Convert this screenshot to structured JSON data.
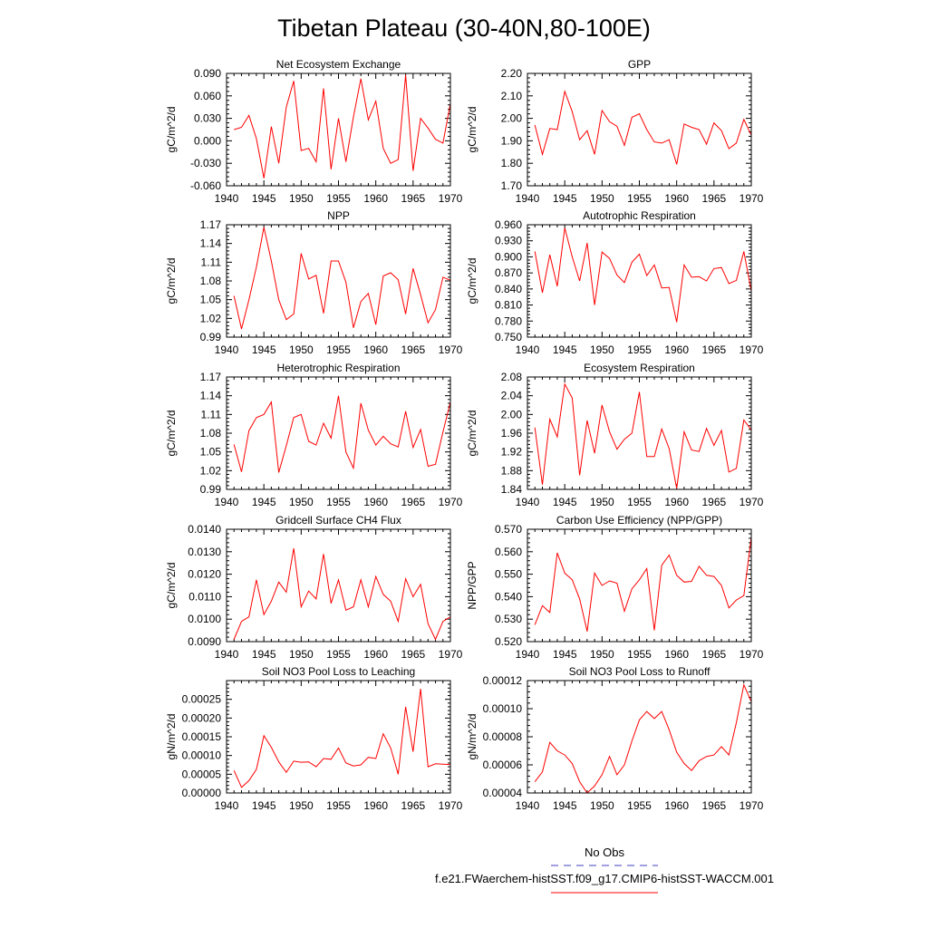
{
  "title": "Tibetan Plateau (30-40N,80-100E)",
  "legend": {
    "entries": [
      {
        "label": "No Obs",
        "color": "#4040c0",
        "dash": true
      },
      {
        "label": "f.e21.FWaerchem-histSST.f09_g17.CMIP6-histSST-WACCM.001",
        "color": "#ff0000",
        "dash": false
      }
    ]
  },
  "chart_data": [
    {
      "type": "line",
      "title": "Net Ecosystem Exchange",
      "ylabel": "gC/m^2/d",
      "xlim": [
        1940,
        1970
      ],
      "xticks": [
        "1940",
        "1945",
        "1950",
        "1955",
        "1960",
        "1965",
        "1970"
      ],
      "ylim": [
        -0.06,
        0.09
      ],
      "yticks": [
        "-0.060",
        "-0.030",
        "0.000",
        "0.030",
        "0.060",
        "0.090"
      ],
      "x": [
        1941,
        1942,
        1943,
        1944,
        1945,
        1946,
        1947,
        1948,
        1949,
        1950,
        1951,
        1952,
        1953,
        1954,
        1955,
        1956,
        1957,
        1958,
        1959,
        1960,
        1961,
        1962,
        1963,
        1964,
        1965,
        1966,
        1967,
        1968,
        1969,
        1970
      ],
      "series": [
        {
          "color": "#ff0000",
          "values": [
            0.015,
            0.018,
            0.034,
            0.003,
            -0.05,
            0.019,
            -0.03,
            0.045,
            0.08,
            -0.013,
            -0.01,
            -0.028,
            0.07,
            -0.038,
            0.03,
            -0.028,
            0.032,
            0.083,
            0.028,
            0.053,
            -0.01,
            -0.03,
            -0.025,
            0.088,
            -0.04,
            0.03,
            0.017,
            0.002,
            -0.003,
            0.05
          ]
        }
      ]
    },
    {
      "type": "line",
      "title": "GPP",
      "ylabel": "gC/m^2/d",
      "xlim": [
        1940,
        1970
      ],
      "xticks": [
        "1940",
        "1945",
        "1950",
        "1955",
        "1960",
        "1965",
        "1970"
      ],
      "ylim": [
        1.7,
        2.2
      ],
      "yticks": [
        "1.70",
        "1.80",
        "1.90",
        "2.00",
        "2.10",
        "2.20"
      ],
      "x": [
        1941,
        1942,
        1943,
        1944,
        1945,
        1946,
        1947,
        1948,
        1949,
        1950,
        1951,
        1952,
        1953,
        1954,
        1955,
        1956,
        1957,
        1958,
        1959,
        1960,
        1961,
        1962,
        1963,
        1964,
        1965,
        1966,
        1967,
        1968,
        1969,
        1970
      ],
      "series": [
        {
          "color": "#ff0000",
          "values": [
            1.97,
            1.84,
            1.955,
            1.95,
            2.12,
            2.03,
            1.905,
            1.945,
            1.84,
            2.035,
            1.985,
            1.965,
            1.88,
            2.005,
            2.02,
            1.95,
            1.895,
            1.89,
            1.905,
            1.795,
            1.975,
            1.96,
            1.95,
            1.885,
            1.98,
            1.945,
            1.865,
            1.89,
            1.995,
            1.925
          ]
        }
      ]
    },
    {
      "type": "line",
      "title": "NPP",
      "ylabel": "gC/m^2/d",
      "xlim": [
        1940,
        1970
      ],
      "xticks": [
        "1940",
        "1945",
        "1950",
        "1955",
        "1960",
        "1965",
        "1970"
      ],
      "ylim": [
        0.99,
        1.17
      ],
      "yticks": [
        "0.99",
        "1.02",
        "1.05",
        "1.08",
        "1.11",
        "1.14",
        "1.17"
      ],
      "x": [
        1941,
        1942,
        1943,
        1944,
        1945,
        1946,
        1947,
        1948,
        1949,
        1950,
        1951,
        1952,
        1953,
        1954,
        1955,
        1956,
        1957,
        1958,
        1959,
        1960,
        1961,
        1962,
        1963,
        1964,
        1965,
        1966,
        1967,
        1968,
        1969,
        1970
      ],
      "series": [
        {
          "color": "#ff0000",
          "values": [
            1.056,
            1.003,
            1.05,
            1.102,
            1.166,
            1.112,
            1.05,
            1.018,
            1.027,
            1.124,
            1.083,
            1.089,
            1.028,
            1.112,
            1.112,
            1.078,
            1.005,
            1.047,
            1.06,
            1.01,
            1.088,
            1.093,
            1.082,
            1.027,
            1.1,
            1.058,
            1.013,
            1.034,
            1.086,
            1.081
          ]
        }
      ]
    },
    {
      "type": "line",
      "title": "Autotrophic Respiration",
      "ylabel": "gC/m^2/d",
      "xlim": [
        1940,
        1970
      ],
      "xticks": [
        "1940",
        "1945",
        "1950",
        "1955",
        "1960",
        "1965",
        "1970"
      ],
      "ylim": [
        0.75,
        0.96
      ],
      "yticks": [
        "0.750",
        "0.780",
        "0.810",
        "0.840",
        "0.870",
        "0.900",
        "0.930",
        "0.960"
      ],
      "x": [
        1941,
        1942,
        1943,
        1944,
        1945,
        1946,
        1947,
        1948,
        1949,
        1950,
        1951,
        1952,
        1953,
        1954,
        1955,
        1956,
        1957,
        1958,
        1959,
        1960,
        1961,
        1962,
        1963,
        1964,
        1965,
        1966,
        1967,
        1968,
        1969,
        1970
      ],
      "series": [
        {
          "color": "#ff0000",
          "values": [
            0.91,
            0.833,
            0.904,
            0.845,
            0.954,
            0.9,
            0.855,
            0.926,
            0.81,
            0.909,
            0.897,
            0.866,
            0.852,
            0.89,
            0.905,
            0.865,
            0.885,
            0.842,
            0.843,
            0.778,
            0.885,
            0.862,
            0.863,
            0.855,
            0.878,
            0.88,
            0.85,
            0.856,
            0.91,
            0.836
          ]
        }
      ]
    },
    {
      "type": "line",
      "title": "Heterotrophic Respiration",
      "ylabel": "gC/m^2/d",
      "xlim": [
        1940,
        1970
      ],
      "xticks": [
        "1940",
        "1945",
        "1950",
        "1955",
        "1960",
        "1965",
        "1970"
      ],
      "ylim": [
        0.99,
        1.17
      ],
      "yticks": [
        "0.99",
        "1.02",
        "1.05",
        "1.08",
        "1.11",
        "1.14",
        "1.17"
      ],
      "x": [
        1941,
        1942,
        1943,
        1944,
        1945,
        1946,
        1947,
        1948,
        1949,
        1950,
        1951,
        1952,
        1953,
        1954,
        1955,
        1956,
        1957,
        1958,
        1959,
        1960,
        1961,
        1962,
        1963,
        1964,
        1965,
        1966,
        1967,
        1968,
        1969,
        1970
      ],
      "series": [
        {
          "color": "#ff0000",
          "values": [
            1.062,
            1.018,
            1.084,
            1.105,
            1.11,
            1.13,
            1.017,
            1.06,
            1.105,
            1.11,
            1.067,
            1.061,
            1.096,
            1.072,
            1.14,
            1.05,
            1.024,
            1.128,
            1.085,
            1.061,
            1.075,
            1.063,
            1.058,
            1.115,
            1.057,
            1.086,
            1.027,
            1.03,
            1.082,
            1.13
          ]
        }
      ]
    },
    {
      "type": "line",
      "title": "Ecosystem Respiration",
      "ylabel": "gC/m^2/d",
      "xlim": [
        1940,
        1970
      ],
      "xticks": [
        "1940",
        "1945",
        "1950",
        "1955",
        "1960",
        "1965",
        "1970"
      ],
      "ylim": [
        1.84,
        2.08
      ],
      "yticks": [
        "1.84",
        "1.88",
        "1.92",
        "1.96",
        "2.00",
        "2.04",
        "2.08"
      ],
      "x": [
        1941,
        1942,
        1943,
        1944,
        1945,
        1946,
        1947,
        1948,
        1949,
        1950,
        1951,
        1952,
        1953,
        1954,
        1955,
        1956,
        1957,
        1958,
        1959,
        1960,
        1961,
        1962,
        1963,
        1964,
        1965,
        1966,
        1967,
        1968,
        1969,
        1970
      ],
      "series": [
        {
          "color": "#ff0000",
          "values": [
            1.972,
            1.85,
            1.99,
            1.952,
            2.065,
            2.035,
            1.87,
            1.987,
            1.917,
            2.02,
            1.963,
            1.926,
            1.947,
            1.96,
            2.048,
            1.91,
            1.91,
            1.969,
            1.927,
            1.842,
            1.963,
            1.924,
            1.921,
            1.97,
            1.934,
            1.966,
            1.877,
            1.885,
            1.988,
            1.967
          ]
        }
      ]
    },
    {
      "type": "line",
      "title": "Gridcell Surface CH4 Flux",
      "ylabel": "gC/m^2/d",
      "xlim": [
        1940,
        1970
      ],
      "xticks": [
        "1940",
        "1945",
        "1950",
        "1955",
        "1960",
        "1965",
        "1970"
      ],
      "ylim": [
        0.009,
        0.014
      ],
      "yticks": [
        "0.0090",
        "0.0100",
        "0.0110",
        "0.0120",
        "0.0130",
        "0.0140"
      ],
      "x": [
        1941,
        1942,
        1943,
        1944,
        1945,
        1946,
        1947,
        1948,
        1949,
        1950,
        1951,
        1952,
        1953,
        1954,
        1955,
        1956,
        1957,
        1958,
        1959,
        1960,
        1961,
        1962,
        1963,
        1964,
        1965,
        1966,
        1967,
        1968,
        1969,
        1970
      ],
      "series": [
        {
          "color": "#ff0000",
          "values": [
            0.0091,
            0.0099,
            0.0101,
            0.01175,
            0.0102,
            0.0108,
            0.01165,
            0.0112,
            0.01315,
            0.01055,
            0.01125,
            0.0109,
            0.0129,
            0.0107,
            0.01175,
            0.0104,
            0.01055,
            0.01175,
            0.01055,
            0.0119,
            0.0111,
            0.0108,
            0.0099,
            0.0118,
            0.011,
            0.01155,
            0.0098,
            0.0091,
            0.0099,
            0.0101
          ]
        }
      ]
    },
    {
      "type": "line",
      "title": "Carbon Use Efficiency (NPP/GPP)",
      "ylabel": "NPP/GPP",
      "xlim": [
        1940,
        1970
      ],
      "xticks": [
        "1940",
        "1945",
        "1950",
        "1955",
        "1960",
        "1965",
        "1970"
      ],
      "ylim": [
        0.52,
        0.57
      ],
      "yticks": [
        "0.520",
        "0.530",
        "0.540",
        "0.550",
        "0.560",
        "0.570"
      ],
      "x": [
        1941,
        1942,
        1943,
        1944,
        1945,
        1946,
        1947,
        1948,
        1949,
        1950,
        1951,
        1952,
        1953,
        1954,
        1955,
        1956,
        1957,
        1958,
        1959,
        1960,
        1961,
        1962,
        1963,
        1964,
        1965,
        1966,
        1967,
        1968,
        1969,
        1970
      ],
      "series": [
        {
          "color": "#ff0000",
          "values": [
            0.5275,
            0.536,
            0.533,
            0.5595,
            0.5505,
            0.5475,
            0.539,
            0.5245,
            0.5505,
            0.545,
            0.547,
            0.546,
            0.5335,
            0.5435,
            0.5475,
            0.5525,
            0.525,
            0.554,
            0.5585,
            0.5495,
            0.5465,
            0.5468,
            0.5535,
            0.5495,
            0.549,
            0.545,
            0.535,
            0.5385,
            0.5405,
            0.5665
          ]
        }
      ]
    },
    {
      "type": "line",
      "title": "Soil NO3 Pool Loss to Leaching",
      "ylabel": "gN/m^2/d",
      "xlim": [
        1940,
        1970
      ],
      "xticks": [
        "1940",
        "1945",
        "1950",
        "1955",
        "1960",
        "1965",
        "1970"
      ],
      "ylim": [
        0,
        0.0003
      ],
      "yticks": [
        "0.00000",
        "0.00005",
        "0.00010",
        "0.00015",
        "0.00020",
        "0.00025"
      ],
      "x": [
        1941,
        1942,
        1943,
        1944,
        1945,
        1946,
        1947,
        1948,
        1949,
        1950,
        1951,
        1952,
        1953,
        1954,
        1955,
        1956,
        1957,
        1958,
        1959,
        1960,
        1961,
        1962,
        1963,
        1964,
        1965,
        1966,
        1967,
        1968,
        1969,
        1970
      ],
      "series": [
        {
          "color": "#ff0000",
          "values": [
            6e-05,
            1.5e-05,
            3.3e-05,
            6.3e-05,
            0.000153,
            0.000122,
            8.3e-05,
            5.5e-05,
            8.5e-05,
            8.2e-05,
            8.3e-05,
            7e-05,
            9.2e-05,
            9e-05,
            0.00012,
            8e-05,
            7.2e-05,
            7.5e-05,
            9.5e-05,
            9.2e-05,
            0.000158,
            0.00012,
            5e-05,
            0.00023,
            0.00011,
            0.000278,
            7e-05,
            7.8e-05,
            7.7e-05,
            7.6e-05
          ]
        }
      ]
    },
    {
      "type": "line",
      "title": "Soil NO3 Pool Loss to Runoff",
      "ylabel": "gN/m^2/d",
      "xlim": [
        1940,
        1970
      ],
      "xticks": [
        "1940",
        "1945",
        "1950",
        "1955",
        "1960",
        "1965",
        "1970"
      ],
      "ylim": [
        4e-05,
        0.00012
      ],
      "yticks": [
        "0.00004",
        "0.00006",
        "0.00008",
        "0.00010",
        "0.00012"
      ],
      "x": [
        1941,
        1942,
        1943,
        1944,
        1945,
        1946,
        1947,
        1948,
        1949,
        1950,
        1951,
        1952,
        1953,
        1954,
        1955,
        1956,
        1957,
        1958,
        1959,
        1960,
        1961,
        1962,
        1963,
        1964,
        1965,
        1966,
        1967,
        1968,
        1969,
        1970
      ],
      "series": [
        {
          "color": "#ff0000",
          "values": [
            4.8e-05,
            5.5e-05,
            7.6e-05,
            7e-05,
            6.7e-05,
            6.1e-05,
            4.8e-05,
            4e-05,
            4.5e-05,
            5.3e-05,
            6.6e-05,
            5.3e-05,
            6e-05,
            7.7e-05,
            9.2e-05,
            9.8e-05,
            9.3e-05,
            9.8e-05,
            8.5e-05,
            6.9e-05,
            6.1e-05,
            5.6e-05,
            6.3e-05,
            6.6e-05,
            6.7e-05,
            7.3e-05,
            6.7e-05,
            9e-05,
            0.000117,
            0.000105
          ]
        }
      ]
    }
  ]
}
